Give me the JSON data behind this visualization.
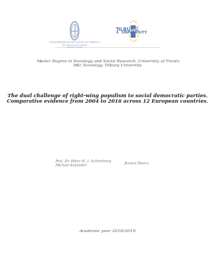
{
  "background_color": "#ffffff",
  "logo_trento_text": "UNIVERSITÀ DEGLI STUDI DI TRENTO",
  "logo_trento_sub1": "Dipartimento di Sociologia",
  "logo_trento_sub2": "e Ricerca Sociale",
  "degree_line1": "Master Degree in Sociology and Social Research, University of Trento",
  "degree_line2": "MSc Sociology, Tilburg University",
  "title_line1": "The dual challenge of right-wing populism to social democratic parties.",
  "title_line2": "Comparative evidence from 2004 to 2016 across 12 European countries.",
  "supervisor_line1": "Prof. Dr. Peter H. J. Achterberg",
  "supervisor_line2": "Michael Kolander",
  "student_name": "Jessica Bosco",
  "academic_year": "Academic year 2018/2019",
  "text_color": "#555555",
  "title_color": "#222222",
  "small_color": "#777777",
  "trento_blue": "#8899bb",
  "tilburg_gold": "#ddaa22",
  "tilburg_blue": "#5577aa"
}
